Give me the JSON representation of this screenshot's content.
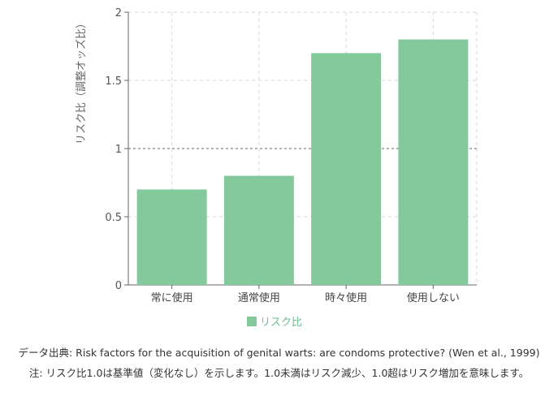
{
  "chart_data": {
    "type": "bar",
    "categories": [
      "常に使用",
      "通常使用",
      "時々使用",
      "使用しない"
    ],
    "series": [
      {
        "name": "リスク比",
        "values": [
          0.7,
          0.8,
          1.7,
          1.8
        ]
      }
    ],
    "ylabel": "リスク比（調整オッズ比）",
    "ylim": [
      0,
      2
    ],
    "yticks": [
      "0",
      "0.5",
      "1",
      "1.5",
      "2"
    ],
    "reference_line": 1,
    "grid": true,
    "legend_position": "bottom",
    "bar_color": "#84c99c"
  },
  "footer": {
    "source": "データ出典: Risk factors for the acquisition of genital warts: are condoms protective? (Wen et al., 1999)",
    "note": "注: リスク比1.0は基準値（変化なし）を示します。1.0未満はリスク減少、1.0超はリスク増加を意味します。"
  }
}
